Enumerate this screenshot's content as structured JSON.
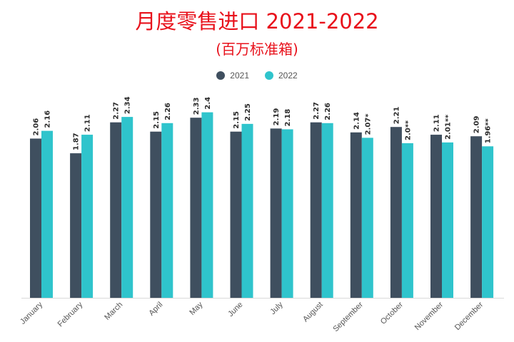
{
  "chart_data": {
    "type": "bar",
    "title": "月度零售进口 2021-2022",
    "subtitle": "(百万标准箱)",
    "categories": [
      "January",
      "February",
      "March",
      "April",
      "May",
      "June",
      "July",
      "August",
      "September",
      "October",
      "November",
      "December"
    ],
    "series": [
      {
        "name": "2021",
        "color": "#3f4f5f",
        "values": [
          2.06,
          1.87,
          2.27,
          2.15,
          2.33,
          2.15,
          2.19,
          2.27,
          2.14,
          2.21,
          2.11,
          2.09
        ],
        "labels": [
          "2.06",
          "1.87",
          "2.27",
          "2.15",
          "2.33",
          "2.15",
          "2.19",
          "2.27",
          "2.14",
          "2.21",
          "2.11",
          "2.09"
        ]
      },
      {
        "name": "2022",
        "color": "#2fc4cc",
        "values": [
          2.16,
          2.11,
          2.34,
          2.26,
          2.4,
          2.25,
          2.18,
          2.26,
          2.07,
          2.0,
          2.01,
          1.96
        ],
        "labels": [
          "2.16",
          "2.11",
          "2.34",
          "2.26",
          "2.4",
          "2.25",
          "2.18",
          "2.26",
          "2.07*",
          "2.0**",
          "2.01**",
          "1.96**"
        ]
      }
    ],
    "ylim": [
      0,
      2.5
    ],
    "grid": false,
    "legend": "top-center",
    "title_color": "#e8111b"
  }
}
